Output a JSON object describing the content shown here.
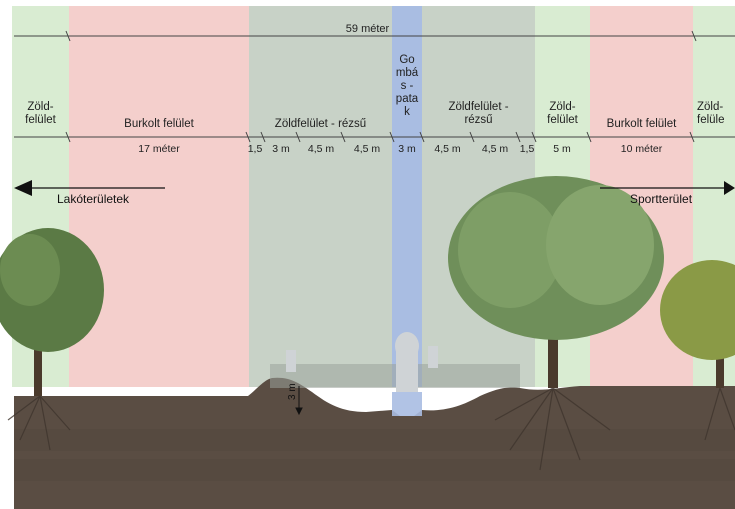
{
  "total": "59 méter",
  "zones": [
    {
      "name": "Zöld-\nfelület",
      "width_label": ""
    },
    {
      "name": "Burkolt felület",
      "width_label": "17 méter"
    },
    {
      "name": "",
      "width_label": "1,5"
    },
    {
      "name": "Zöldfelület - rézsű",
      "width_label": "3 m"
    },
    {
      "name": "",
      "width_label": "4,5 m"
    },
    {
      "name": "",
      "width_label": "4,5 m"
    },
    {
      "name": "Go\nmbá\ns -\npata\nk",
      "width_label": "3 m"
    },
    {
      "name": "Zöldfelület -\nrézsű",
      "width_label": "4,5 m"
    },
    {
      "name": "",
      "width_label": "4,5 m"
    },
    {
      "name": "",
      "width_label": "1,5"
    },
    {
      "name": "Zöld-\nfelület",
      "width_label": "5 m"
    },
    {
      "name": "Burkolt felület",
      "width_label": "10 méter"
    },
    {
      "name": "Zöld-\nfelüle",
      "width_label": ""
    }
  ],
  "left_direction": "Lakóterületek",
  "right_direction": "Sportterület",
  "depth_label": "3 m",
  "colors": {
    "green_zone": "#d9ecd2",
    "paved_zone": "#f4cfcc",
    "slope_zone": "#c8d2c7",
    "stream": "#a9bde2",
    "soil": "#5a4d43",
    "tree": "#5b7a45"
  }
}
